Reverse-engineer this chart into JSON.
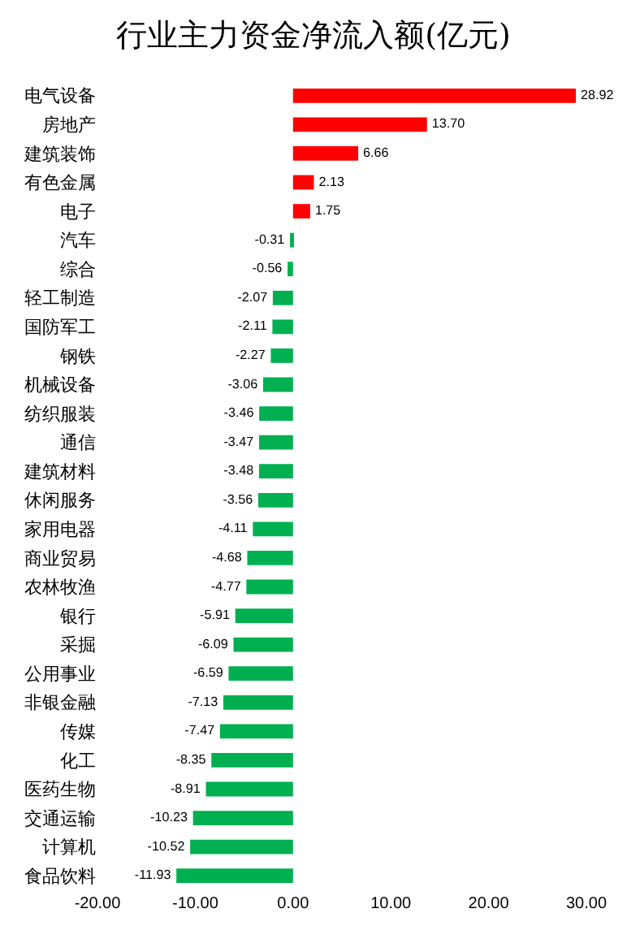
{
  "chart_data": {
    "type": "bar",
    "orientation": "horizontal",
    "title": "行业主力资金净流入额(亿元)",
    "categories": [
      "电气设备",
      "房地产",
      "建筑装饰",
      "有色金属",
      "电子",
      "汽车",
      "综合",
      "轻工制造",
      "国防军工",
      "钢铁",
      "机械设备",
      "纺织服装",
      "通信",
      "建筑材料",
      "休闲服务",
      "家用电器",
      "商业贸易",
      "农林牧渔",
      "银行",
      "采掘",
      "公用事业",
      "非银金融",
      "传媒",
      "化工",
      "医药生物",
      "交通运输",
      "计算机",
      "食品饮料"
    ],
    "values": [
      28.92,
      13.7,
      6.66,
      2.13,
      1.75,
      -0.31,
      -0.56,
      -2.07,
      -2.11,
      -2.27,
      -3.06,
      -3.46,
      -3.47,
      -3.48,
      -3.56,
      -4.11,
      -4.68,
      -4.77,
      -5.91,
      -6.09,
      -6.59,
      -7.13,
      -7.47,
      -8.35,
      -8.91,
      -10.23,
      -10.52,
      -11.93
    ],
    "value_labels": [
      "28.92",
      "13.70",
      "6.66",
      "2.13",
      "1.75",
      "-0.31",
      "-0.56",
      "-2.07",
      "-2.11",
      "-2.27",
      "-3.06",
      "-3.46",
      "-3.47",
      "-3.48",
      "-3.56",
      "-4.11",
      "-4.68",
      "-4.77",
      "-5.91",
      "-6.09",
      "-6.59",
      "-7.13",
      "-7.47",
      "-8.35",
      "-8.91",
      "-10.23",
      "-10.52",
      "-11.93"
    ],
    "colors": [
      "#ff0000",
      "#ff0000",
      "#ff0000",
      "#ff0000",
      "#ff0000",
      "#00b050",
      "#00b050",
      "#00b050",
      "#00b050",
      "#00b050",
      "#00b050",
      "#00b050",
      "#00b050",
      "#00b050",
      "#00b050",
      "#00b050",
      "#00b050",
      "#00b050",
      "#00b050",
      "#00b050",
      "#00b050",
      "#00b050",
      "#00b050",
      "#00b050",
      "#00b050",
      "#00b050",
      "#00b050",
      "#00b050"
    ],
    "xlim": [
      -20,
      30
    ],
    "xticks": [
      {
        "value": -20,
        "label": "-20.00"
      },
      {
        "value": -10,
        "label": "-10.00"
      },
      {
        "value": 0,
        "label": "0.00"
      },
      {
        "value": 10,
        "label": "10.00"
      },
      {
        "value": 20,
        "label": "20.00"
      },
      {
        "value": 30,
        "label": "30.00"
      }
    ],
    "grid": false,
    "legend": false
  }
}
